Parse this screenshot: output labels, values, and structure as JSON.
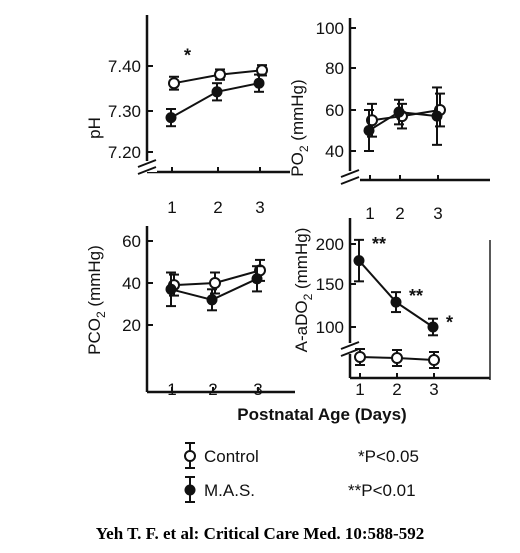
{
  "chart_data": [
    {
      "type": "line",
      "ylabel": "pH",
      "categories": [
        "1",
        "2",
        "3"
      ],
      "yticks": [
        "7.20",
        "7.30",
        "7.40"
      ],
      "ylim": [
        7.17,
        7.43
      ],
      "series": [
        {
          "name": "Control",
          "marker": "open-circle",
          "values": [
            7.36,
            7.38,
            7.39
          ],
          "error": [
            0.015,
            0.012,
            0.012
          ]
        },
        {
          "name": "M.A.S.",
          "marker": "filled-circle",
          "values": [
            7.28,
            7.34,
            7.36
          ],
          "error": [
            0.02,
            0.02,
            0.02
          ]
        }
      ],
      "annotations": [
        {
          "text": "*",
          "x": "1"
        }
      ]
    },
    {
      "type": "line",
      "ylabel": "PO2 (mmHg)",
      "categories": [
        "1",
        "2",
        "3"
      ],
      "yticks": [
        "40",
        "60",
        "80",
        "100"
      ],
      "ylim": [
        35,
        102
      ],
      "series": [
        {
          "name": "Control",
          "marker": "open-circle",
          "values": [
            55,
            57,
            60
          ],
          "error": [
            8,
            6,
            8
          ]
        },
        {
          "name": "M.A.S.",
          "marker": "filled-circle",
          "values": [
            50,
            59,
            57
          ],
          "error": [
            10,
            6,
            14
          ]
        }
      ],
      "annotations": []
    },
    {
      "type": "line",
      "ylabel": "PCO2 (mmHg)",
      "categories": [
        "1",
        "2",
        "3"
      ],
      "yticks": [
        "20",
        "40",
        "60"
      ],
      "ylim": [
        10,
        68
      ],
      "series": [
        {
          "name": "Control",
          "marker": "open-circle",
          "values": [
            39,
            40,
            46
          ],
          "error": [
            5,
            5,
            5
          ]
        },
        {
          "name": "M.A.S.",
          "marker": "filled-circle",
          "values": [
            37,
            32,
            42
          ],
          "error": [
            8,
            5,
            6
          ]
        }
      ],
      "annotations": []
    },
    {
      "type": "line",
      "ylabel": "A-aDO2 (mmHg)",
      "categories": [
        "1",
        "2",
        "3"
      ],
      "yticks": [
        "100",
        "150",
        "200"
      ],
      "ylim": [
        85,
        215
      ],
      "series": [
        {
          "name": "M.A.S.",
          "marker": "filled-circle",
          "values": [
            180,
            130,
            100
          ],
          "error": [
            25,
            12,
            10
          ]
        }
      ],
      "annotations": [
        {
          "text": "**",
          "x": "1"
        },
        {
          "text": "**",
          "x": "2"
        },
        {
          "text": "*",
          "x": "3"
        }
      ],
      "below_break": {
        "series": "Control",
        "marker": "open-circle",
        "note": "values below axis break, unlabeled"
      }
    }
  ],
  "xlabel": "Postnatal Age (Days)",
  "legend": {
    "control_label": "Control",
    "mas_label": "M.A.S.",
    "sig1": "*P<0.05",
    "sig2": "**P<0.01"
  },
  "citation": "Yeh T. F. et al: Critical Care Med. 10:588-592"
}
